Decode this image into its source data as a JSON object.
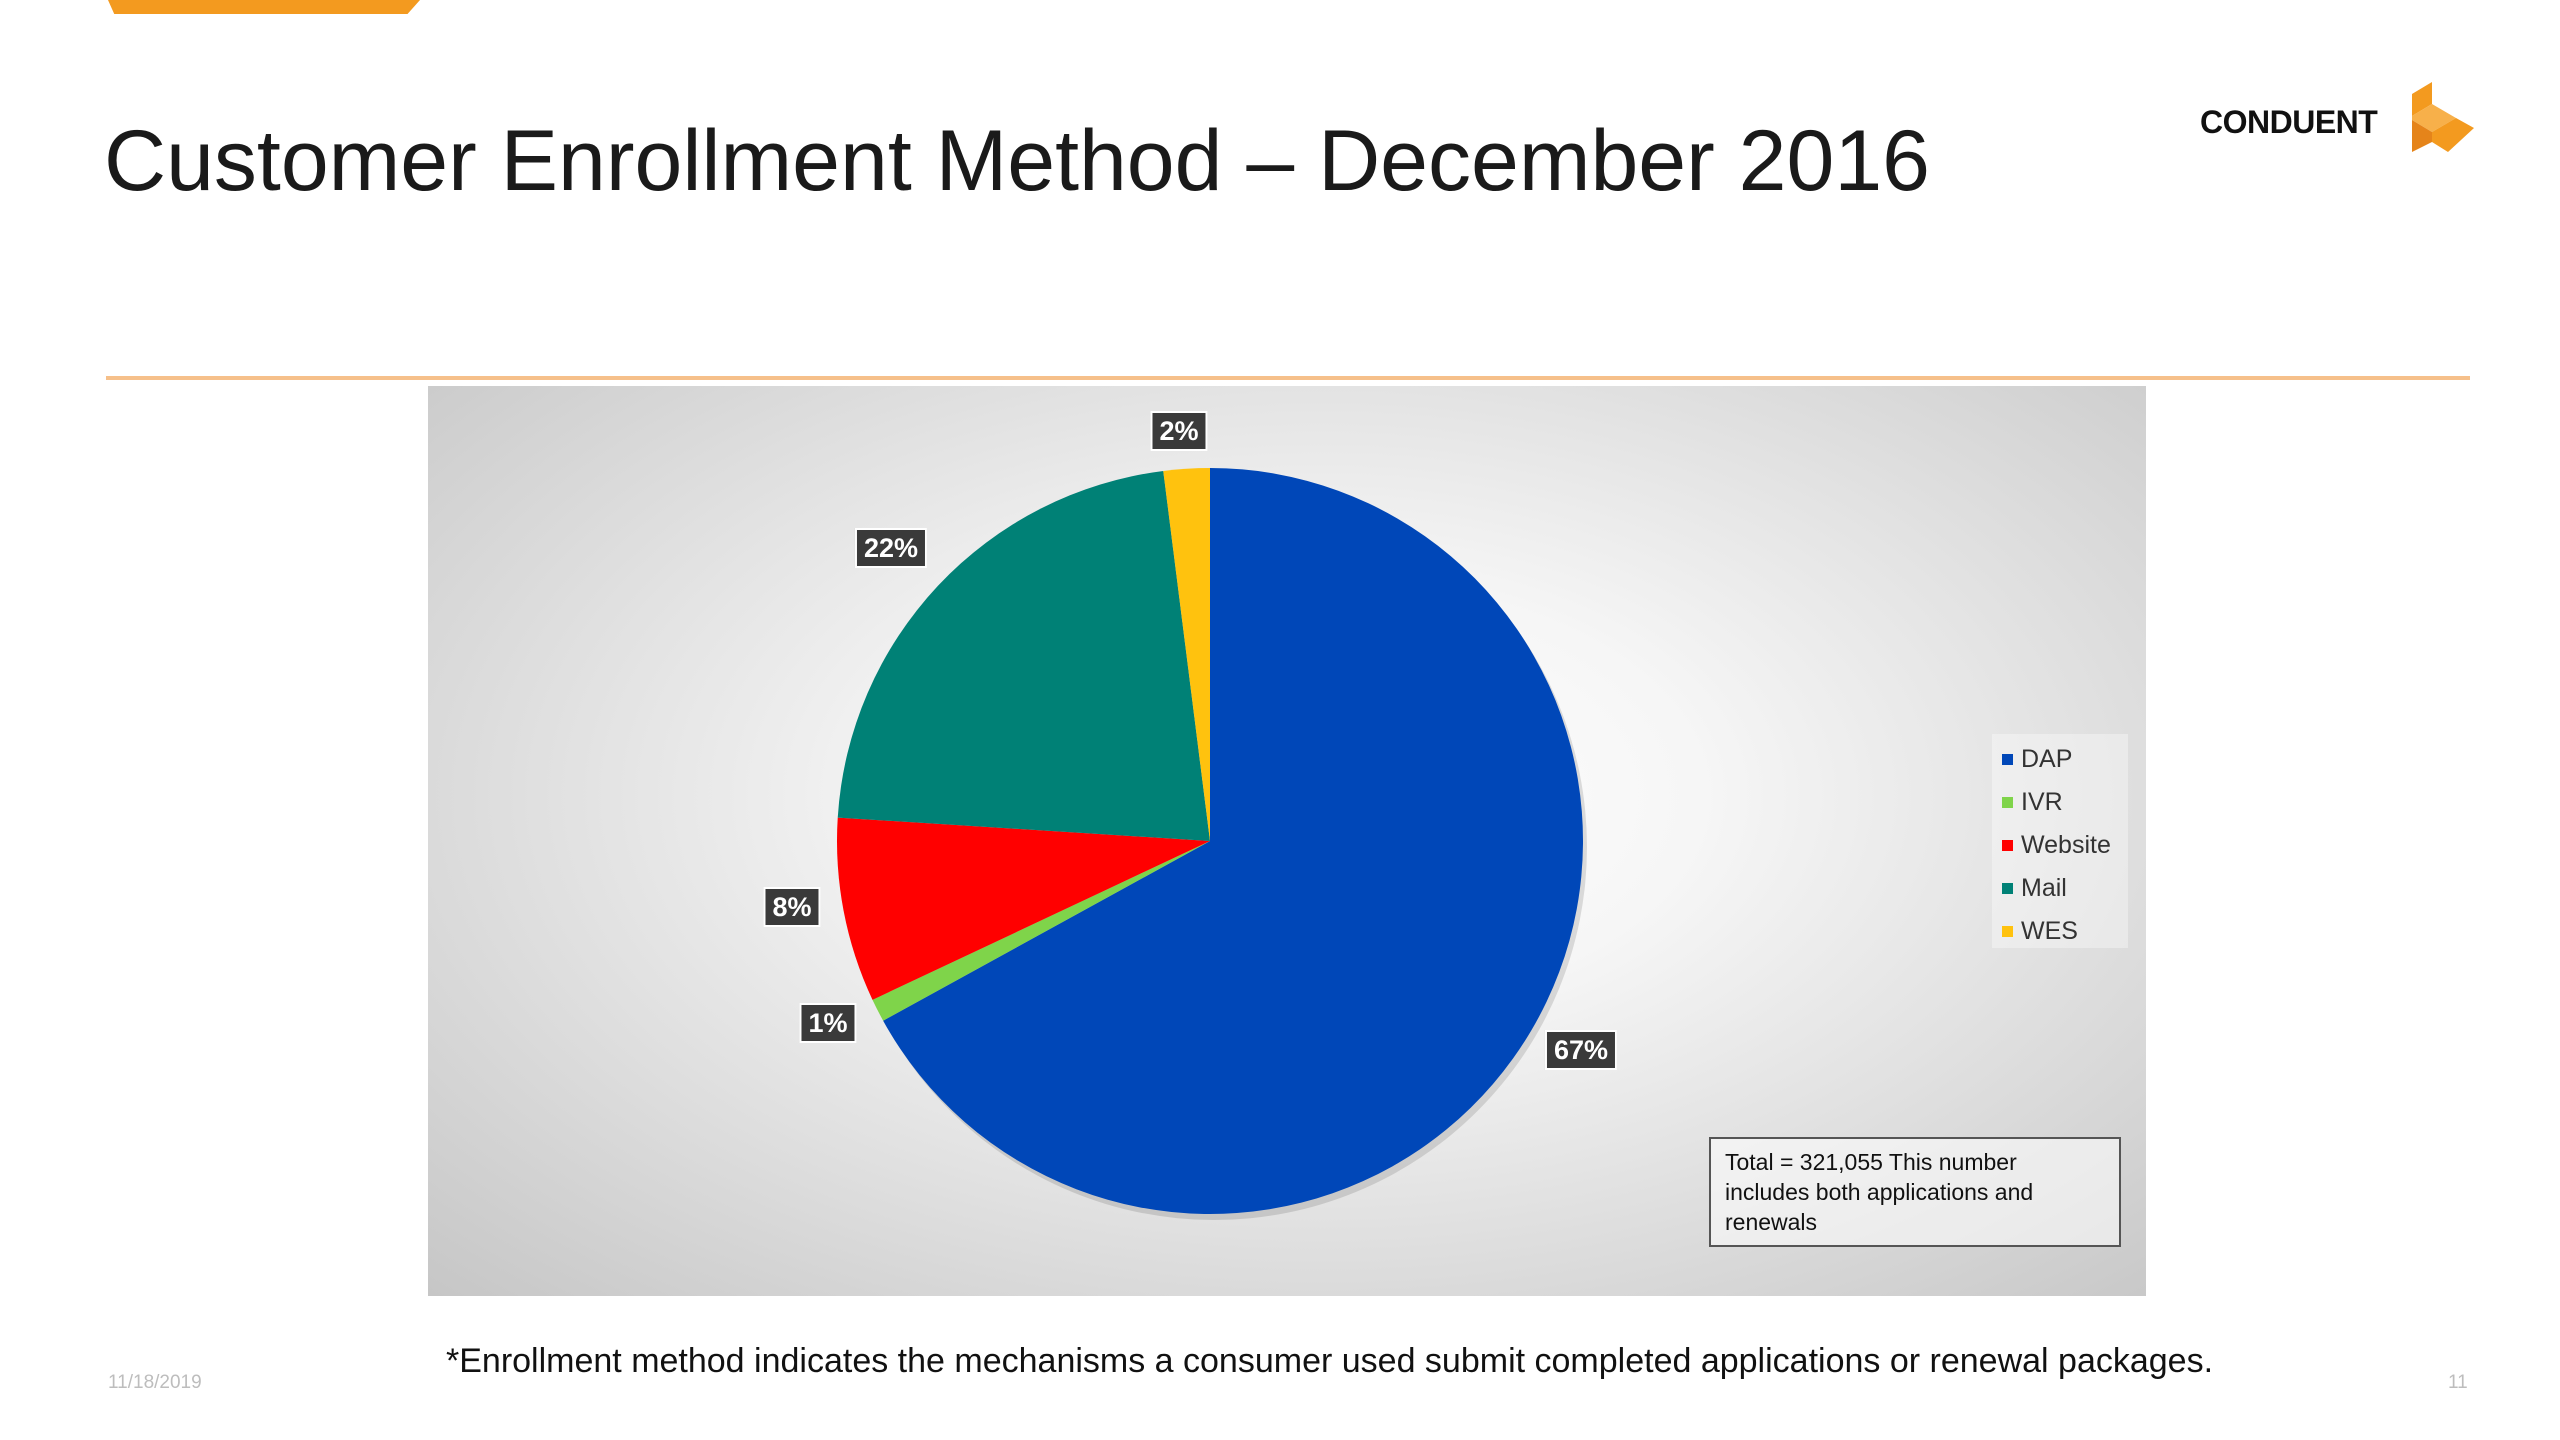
{
  "slide": {
    "title": "Customer Enrollment Method – December 2016",
    "footnote": "*Enrollment method indicates the mechanisms a consumer used submit completed applications or renewal packages.",
    "date": "11/18/2019",
    "page_number": "11",
    "accent_color": "#f39a1f"
  },
  "logo": {
    "text": "CONDUENT",
    "icon": "conduent-logo-icon",
    "color": "#f39a1f"
  },
  "chart_data": {
    "type": "pie",
    "categories": [
      "DAP",
      "IVR",
      "Website",
      "Mail",
      "WES"
    ],
    "values": [
      67,
      1,
      8,
      22,
      2
    ],
    "data_labels": [
      "67%",
      "1%",
      "8%",
      "22%",
      "2%"
    ],
    "colors": [
      "#0047b8",
      "#7fd44a",
      "#ff0000",
      "#008176",
      "#ffc20e"
    ],
    "start_angle_deg": 0,
    "direction": "clockwise",
    "legend": {
      "position": "right"
    },
    "annotation": "Total = 321,055  This number includes both applications and renewals"
  }
}
